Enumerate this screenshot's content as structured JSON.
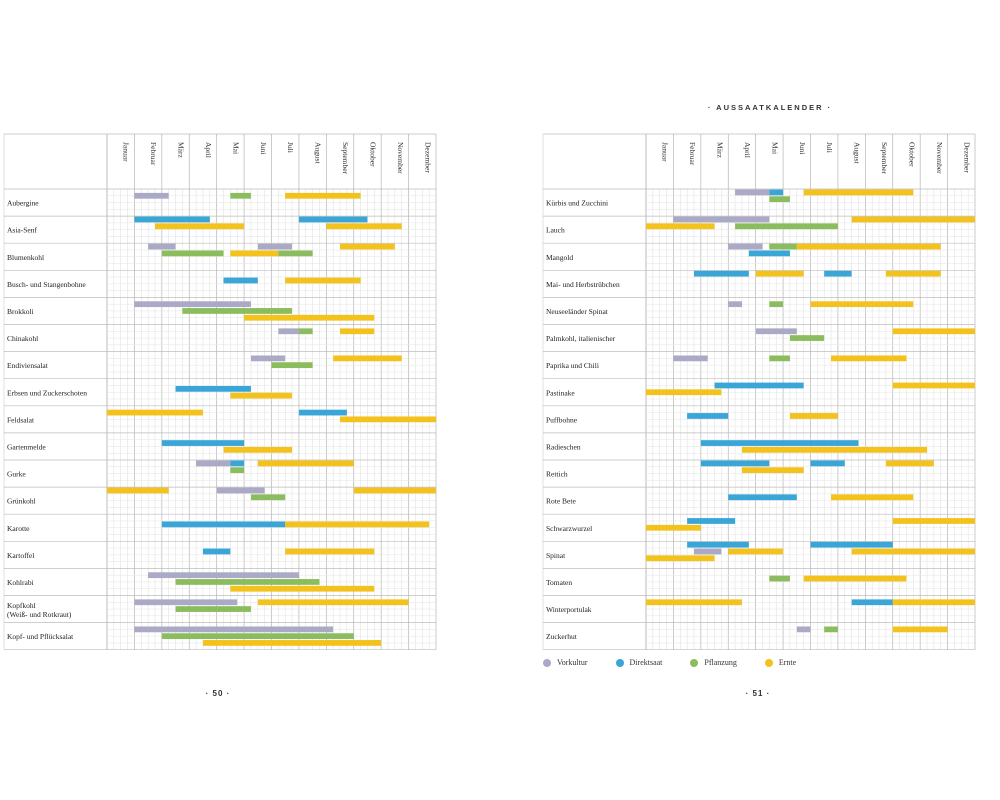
{
  "header": {
    "title": "· AUSSAATKALENDER ·"
  },
  "page_numbers": {
    "left": "· 50 ·",
    "right": "· 51 ·"
  },
  "months": [
    "Januar",
    "Februar",
    "März",
    "April",
    "Mai",
    "Juni",
    "Juli",
    "August",
    "September",
    "Oktober",
    "November",
    "Dezember"
  ],
  "colors": {
    "vorkultur": "#aaa9c6",
    "direktsaat": "#3aa6d8",
    "pflanzung": "#8bbd5e",
    "ernte": "#f3c21c"
  },
  "legend": [
    {
      "key": "vorkultur",
      "label": "Vorkultur"
    },
    {
      "key": "direktsaat",
      "label": "Direktsaat"
    },
    {
      "key": "pflanzung",
      "label": "Pflanzung"
    },
    {
      "key": "ernte",
      "label": "Ernte"
    }
  ],
  "chart_data": [
    {
      "type": "gantt",
      "title": "Aussaatkalender (Seite 50)",
      "x_unit": "month (0 = Anfang Januar, 12 = Ende Dezember)",
      "rows": [
        {
          "name": "Aubergine",
          "bars": [
            {
              "type": "vorkultur",
              "start": 1.0,
              "end": 2.25
            },
            {
              "type": "pflanzung",
              "start": 4.5,
              "end": 5.25
            },
            {
              "type": "ernte",
              "start": 6.5,
              "end": 9.25
            }
          ]
        },
        {
          "name": "Asia-Senf",
          "bars": [
            {
              "type": "direktsaat",
              "start": 1.0,
              "end": 3.75
            },
            {
              "type": "direktsaat",
              "start": 7.0,
              "end": 9.5
            },
            {
              "type": "ernte",
              "start": 1.75,
              "end": 5.0
            },
            {
              "type": "ernte",
              "start": 8.0,
              "end": 10.75
            }
          ]
        },
        {
          "name": "Blumenkohl",
          "bars": [
            {
              "type": "vorkultur",
              "start": 1.5,
              "end": 2.5
            },
            {
              "type": "vorkultur",
              "start": 5.5,
              "end": 6.75
            },
            {
              "type": "pflanzung",
              "start": 2.0,
              "end": 4.25
            },
            {
              "type": "pflanzung",
              "start": 6.25,
              "end": 7.5
            },
            {
              "type": "ernte",
              "start": 4.5,
              "end": 6.25
            },
            {
              "type": "ernte",
              "start": 8.5,
              "end": 10.5
            }
          ]
        },
        {
          "name": "Busch- und Stangenbohne",
          "bars": [
            {
              "type": "direktsaat",
              "start": 4.25,
              "end": 5.5
            },
            {
              "type": "ernte",
              "start": 6.5,
              "end": 9.25
            }
          ]
        },
        {
          "name": "Brokkoli",
          "bars": [
            {
              "type": "vorkultur",
              "start": 1.0,
              "end": 5.25
            },
            {
              "type": "pflanzung",
              "start": 2.75,
              "end": 6.75
            },
            {
              "type": "ernte",
              "start": 5.0,
              "end": 9.75
            }
          ]
        },
        {
          "name": "Chinakohl",
          "bars": [
            {
              "type": "vorkultur",
              "start": 6.25,
              "end": 7.0
            },
            {
              "type": "pflanzung",
              "start": 7.0,
              "end": 7.5
            },
            {
              "type": "ernte",
              "start": 8.5,
              "end": 9.75
            }
          ]
        },
        {
          "name": "Endiviensalat",
          "bars": [
            {
              "type": "vorkultur",
              "start": 5.25,
              "end": 6.5
            },
            {
              "type": "pflanzung",
              "start": 6.0,
              "end": 7.5
            },
            {
              "type": "ernte",
              "start": 8.25,
              "end": 10.75
            }
          ]
        },
        {
          "name": "Erbsen und Zuckerschoten",
          "bars": [
            {
              "type": "direktsaat",
              "start": 2.5,
              "end": 5.25
            },
            {
              "type": "ernte",
              "start": 4.5,
              "end": 6.75
            }
          ]
        },
        {
          "name": "Feldsalat",
          "bars": [
            {
              "type": "direktsaat",
              "start": 7.0,
              "end": 8.75
            },
            {
              "type": "ernte",
              "start": 0.0,
              "end": 3.5
            },
            {
              "type": "ernte",
              "start": 8.5,
              "end": 12.0
            }
          ]
        },
        {
          "name": "Gartenmelde",
          "bars": [
            {
              "type": "direktsaat",
              "start": 2.0,
              "end": 5.0
            },
            {
              "type": "ernte",
              "start": 4.25,
              "end": 6.75
            }
          ]
        },
        {
          "name": "Gurke",
          "bars": [
            {
              "type": "vorkultur",
              "start": 3.25,
              "end": 4.5
            },
            {
              "type": "direktsaat",
              "start": 4.5,
              "end": 5.0
            },
            {
              "type": "pflanzung",
              "start": 4.5,
              "end": 5.0
            },
            {
              "type": "ernte",
              "start": 5.5,
              "end": 9.0
            }
          ]
        },
        {
          "name": "Grünkohl",
          "bars": [
            {
              "type": "vorkultur",
              "start": 4.0,
              "end": 5.75
            },
            {
              "type": "pflanzung",
              "start": 5.25,
              "end": 6.5
            },
            {
              "type": "ernte",
              "start": 0.0,
              "end": 2.25
            },
            {
              "type": "ernte",
              "start": 9.0,
              "end": 12.0
            }
          ]
        },
        {
          "name": "Karotte",
          "bars": [
            {
              "type": "direktsaat",
              "start": 2.0,
              "end": 6.5
            },
            {
              "type": "ernte",
              "start": 6.5,
              "end": 11.75
            }
          ]
        },
        {
          "name": "Kartoffel",
          "bars": [
            {
              "type": "direktsaat",
              "start": 3.5,
              "end": 4.5
            },
            {
              "type": "ernte",
              "start": 6.5,
              "end": 9.75
            }
          ]
        },
        {
          "name": "Kohlrabi",
          "bars": [
            {
              "type": "vorkultur",
              "start": 1.5,
              "end": 7.0
            },
            {
              "type": "pflanzung",
              "start": 2.5,
              "end": 7.75
            },
            {
              "type": "ernte",
              "start": 4.5,
              "end": 9.75
            }
          ]
        },
        {
          "name": "Kopfkohl",
          "name2": "(Weiß- und Rotkraut)",
          "bars": [
            {
              "type": "vorkultur",
              "start": 1.0,
              "end": 4.75
            },
            {
              "type": "pflanzung",
              "start": 2.5,
              "end": 5.25
            },
            {
              "type": "ernte",
              "start": 5.5,
              "end": 11.0
            }
          ]
        },
        {
          "name": "Kopf- und Pflücksalat",
          "bars": [
            {
              "type": "vorkultur",
              "start": 1.0,
              "end": 8.25
            },
            {
              "type": "pflanzung",
              "start": 2.0,
              "end": 9.0
            },
            {
              "type": "ernte",
              "start": 3.5,
              "end": 10.0
            }
          ]
        }
      ]
    },
    {
      "type": "gantt",
      "title": "Aussaatkalender (Seite 51)",
      "x_unit": "month (0 = Anfang Januar, 12 = Ende Dezember)",
      "rows": [
        {
          "name": "Kürbis und Zucchini",
          "bars": [
            {
              "type": "vorkultur",
              "start": 3.25,
              "end": 4.5
            },
            {
              "type": "direktsaat",
              "start": 4.5,
              "end": 5.0
            },
            {
              "type": "pflanzung",
              "start": 4.5,
              "end": 5.25
            },
            {
              "type": "ernte",
              "start": 5.75,
              "end": 9.75
            }
          ]
        },
        {
          "name": "Lauch",
          "bars": [
            {
              "type": "vorkultur",
              "start": 1.0,
              "end": 4.5
            },
            {
              "type": "pflanzung",
              "start": 3.25,
              "end": 7.0
            },
            {
              "type": "ernte",
              "start": 0.0,
              "end": 2.5
            },
            {
              "type": "ernte",
              "start": 7.5,
              "end": 12.0
            }
          ]
        },
        {
          "name": "Mangold",
          "bars": [
            {
              "type": "vorkultur",
              "start": 3.0,
              "end": 4.25
            },
            {
              "type": "direktsaat",
              "start": 3.75,
              "end": 5.25
            },
            {
              "type": "pflanzung",
              "start": 4.5,
              "end": 5.5
            },
            {
              "type": "ernte",
              "start": 5.5,
              "end": 10.75
            }
          ]
        },
        {
          "name": "Mai- und Herbstrübchen",
          "bars": [
            {
              "type": "direktsaat",
              "start": 1.75,
              "end": 3.75
            },
            {
              "type": "direktsaat",
              "start": 6.5,
              "end": 7.5
            },
            {
              "type": "ernte",
              "start": 4.0,
              "end": 5.75
            },
            {
              "type": "ernte",
              "start": 8.75,
              "end": 10.75
            }
          ]
        },
        {
          "name": "Neuseeländer Spinat",
          "bars": [
            {
              "type": "vorkultur",
              "start": 3.0,
              "end": 3.5
            },
            {
              "type": "pflanzung",
              "start": 4.5,
              "end": 5.0
            },
            {
              "type": "ernte",
              "start": 6.0,
              "end": 9.75
            }
          ]
        },
        {
          "name": "Palmkohl, italienischer",
          "bars": [
            {
              "type": "vorkultur",
              "start": 4.0,
              "end": 5.5
            },
            {
              "type": "pflanzung",
              "start": 5.25,
              "end": 6.5
            },
            {
              "type": "ernte",
              "start": 9.0,
              "end": 12.0
            }
          ]
        },
        {
          "name": "Paprika und Chili",
          "bars": [
            {
              "type": "vorkultur",
              "start": 1.0,
              "end": 2.25
            },
            {
              "type": "pflanzung",
              "start": 4.5,
              "end": 5.25
            },
            {
              "type": "ernte",
              "start": 6.75,
              "end": 9.5
            }
          ]
        },
        {
          "name": "Pastinake",
          "bars": [
            {
              "type": "direktsaat",
              "start": 2.5,
              "end": 5.75
            },
            {
              "type": "ernte",
              "start": 0.0,
              "end": 2.75
            },
            {
              "type": "ernte",
              "start": 9.0,
              "end": 12.0
            }
          ]
        },
        {
          "name": "Puffbohne",
          "bars": [
            {
              "type": "direktsaat",
              "start": 1.5,
              "end": 3.0
            },
            {
              "type": "ernte",
              "start": 5.25,
              "end": 7.0
            }
          ]
        },
        {
          "name": "Radieschen",
          "bars": [
            {
              "type": "direktsaat",
              "start": 2.0,
              "end": 7.75
            },
            {
              "type": "ernte",
              "start": 3.5,
              "end": 10.25
            }
          ]
        },
        {
          "name": "Rettich",
          "bars": [
            {
              "type": "direktsaat",
              "start": 2.0,
              "end": 4.5
            },
            {
              "type": "direktsaat",
              "start": 6.0,
              "end": 7.25
            },
            {
              "type": "ernte",
              "start": 3.5,
              "end": 5.75
            },
            {
              "type": "ernte",
              "start": 8.75,
              "end": 10.5
            }
          ]
        },
        {
          "name": "Rote Bete",
          "bars": [
            {
              "type": "direktsaat",
              "start": 3.0,
              "end": 5.5
            },
            {
              "type": "ernte",
              "start": 6.75,
              "end": 9.75
            }
          ]
        },
        {
          "name": "Schwarzwurzel",
          "bars": [
            {
              "type": "direktsaat",
              "start": 1.5,
              "end": 3.25
            },
            {
              "type": "ernte",
              "start": 0.0,
              "end": 2.0
            },
            {
              "type": "ernte",
              "start": 9.0,
              "end": 12.0
            }
          ]
        },
        {
          "name": "Spinat",
          "bars": [
            {
              "type": "direktsaat",
              "start": 1.5,
              "end": 3.75
            },
            {
              "type": "direktsaat",
              "start": 6.0,
              "end": 9.0
            },
            {
              "type": "vorkultur",
              "start": 1.75,
              "end": 2.75
            },
            {
              "type": "ernte",
              "start": 0.0,
              "end": 2.5
            },
            {
              "type": "ernte",
              "start": 3.0,
              "end": 5.0
            },
            {
              "type": "ernte",
              "start": 7.5,
              "end": 12.0
            }
          ]
        },
        {
          "name": "Tomaten",
          "bars": [
            {
              "type": "pflanzung",
              "start": 4.5,
              "end": 5.25
            },
            {
              "type": "ernte",
              "start": 5.75,
              "end": 9.5
            }
          ]
        },
        {
          "name": "Winterportulak",
          "bars": [
            {
              "type": "direktsaat",
              "start": 7.5,
              "end": 9.0
            },
            {
              "type": "ernte",
              "start": 0.0,
              "end": 3.5
            },
            {
              "type": "ernte",
              "start": 9.0,
              "end": 12.0
            }
          ]
        },
        {
          "name": "Zuckerhut",
          "bars": [
            {
              "type": "vorkultur",
              "start": 5.5,
              "end": 6.0
            },
            {
              "type": "pflanzung",
              "start": 6.5,
              "end": 7.0
            },
            {
              "type": "ernte",
              "start": 9.0,
              "end": 11.0
            }
          ]
        }
      ]
    }
  ]
}
